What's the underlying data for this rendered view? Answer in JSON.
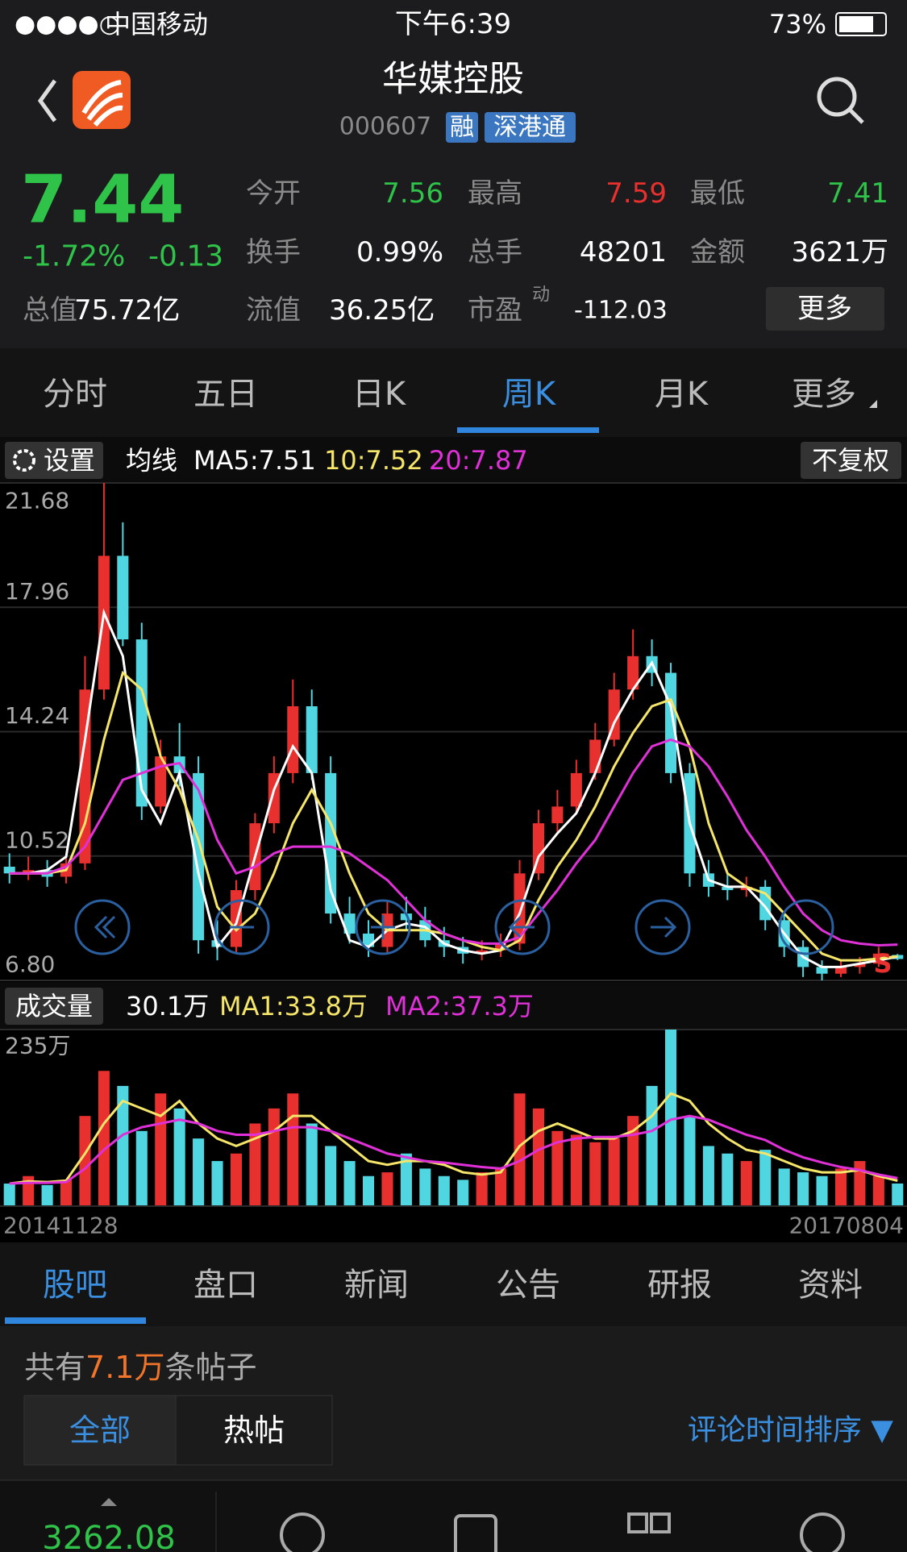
{
  "status_bar": {
    "signal": "●●●●○",
    "carrier": "中国移动",
    "time": "下午6:39",
    "battery": "73%"
  },
  "header": {
    "title": "华媒控股",
    "code": "000607",
    "badges": [
      "融",
      "深港通"
    ]
  },
  "quote": {
    "price": "7.44",
    "change_pct": "-1.72%",
    "change": "-0.13",
    "color": "#2fc34a",
    "fields": [
      {
        "label": "今开",
        "value": "7.56",
        "color": "#2fc34a"
      },
      {
        "label": "最高",
        "value": "7.59",
        "color": "#e8302e"
      },
      {
        "label": "最低",
        "value": "7.41",
        "color": "#2fc34a"
      },
      {
        "label": "换手",
        "value": "0.99%",
        "color": "#ffffff"
      },
      {
        "label": "总手",
        "value": "48201",
        "color": "#ffffff"
      },
      {
        "label": "金额",
        "value": "3621万",
        "color": "#ffffff"
      },
      {
        "label": "总值",
        "value": "75.72亿",
        "color": "#ffffff"
      },
      {
        "label": "流值",
        "value": "36.25亿",
        "color": "#ffffff"
      },
      {
        "label": "市盈",
        "value": "-112.03",
        "color": "#ffffff"
      }
    ],
    "pe_note": "动",
    "more": "更多"
  },
  "chart_tabs": [
    "分时",
    "五日",
    "日K",
    "周K",
    "月K",
    "更多"
  ],
  "active_chart_tab": 3,
  "chart_settings": {
    "settings": "设置",
    "ma_label": "均线",
    "ma5": "MA5:7.51",
    "ma10": "10:7.52",
    "ma20": "20:7.87",
    "adjust": "不复权"
  },
  "chart_data": [
    {
      "type": "candlestick",
      "up_color": "#e8302e",
      "down_color": "#4fd6e0",
      "ylim": [
        6.8,
        21.68
      ],
      "yticks": [
        {
          "value": 6.8,
          "label": "6.80"
        },
        10.52,
        14.24,
        17.96,
        21.68
      ],
      "grid": true,
      "signal_label": "S",
      "open": [
        10.2,
        10.0,
        10.1,
        9.9,
        10.3,
        15.5,
        19.5,
        17.0,
        12.0,
        13.5,
        13.0,
        8.0,
        7.8,
        9.5,
        11.5,
        13.0,
        15.0,
        13.0,
        8.8,
        8.2,
        7.8,
        8.8,
        8.6,
        8.0,
        7.8,
        7.6,
        7.7,
        7.9,
        10.0,
        11.5,
        12.0,
        13.0,
        14.0,
        15.5,
        16.5,
        16.0,
        13.0,
        10.0,
        9.6,
        9.5,
        9.6,
        8.6,
        7.8,
        7.2,
        7.0,
        7.2,
        7.3,
        7.56
      ],
      "close": [
        10.0,
        10.1,
        9.9,
        10.3,
        15.5,
        19.5,
        17.0,
        12.0,
        13.5,
        13.0,
        8.0,
        7.8,
        9.5,
        11.5,
        13.0,
        15.0,
        13.0,
        8.8,
        8.2,
        7.8,
        8.8,
        8.6,
        8.0,
        7.8,
        7.6,
        7.7,
        7.9,
        10.0,
        11.5,
        12.0,
        13.0,
        14.0,
        15.5,
        16.5,
        16.0,
        13.0,
        10.0,
        9.6,
        9.5,
        9.6,
        8.6,
        7.8,
        7.2,
        7.0,
        7.2,
        7.3,
        7.6,
        7.44
      ],
      "high": [
        10.6,
        10.5,
        10.4,
        10.5,
        16.5,
        21.68,
        20.5,
        17.5,
        14.0,
        14.5,
        13.5,
        8.6,
        9.8,
        11.8,
        13.5,
        15.8,
        15.5,
        13.5,
        9.3,
        8.6,
        9.2,
        9.3,
        9.0,
        8.4,
        8.1,
        8.0,
        8.2,
        10.4,
        11.9,
        12.5,
        13.4,
        14.5,
        16.0,
        17.3,
        17.0,
        16.3,
        13.3,
        10.4,
        10.0,
        9.9,
        9.8,
        8.8,
        8.0,
        7.4,
        7.4,
        7.5,
        7.8,
        7.59
      ],
      "low": [
        9.7,
        9.8,
        9.6,
        9.7,
        10.1,
        15.2,
        16.8,
        11.6,
        11.8,
        12.6,
        7.6,
        7.4,
        7.6,
        9.2,
        11.2,
        12.7,
        12.8,
        8.5,
        7.9,
        7.5,
        7.6,
        8.3,
        7.8,
        7.5,
        7.3,
        7.4,
        7.5,
        7.7,
        9.8,
        11.2,
        11.8,
        12.8,
        13.8,
        15.2,
        15.6,
        12.7,
        9.6,
        9.3,
        9.2,
        9.3,
        8.3,
        7.5,
        6.9,
        6.8,
        6.9,
        7.0,
        7.2,
        7.41
      ],
      "series": [
        {
          "name": "MA5",
          "color": "#ffffff",
          "values": [
            10.0,
            10.0,
            10.1,
            10.5,
            14.0,
            17.8,
            16.5,
            12.5,
            11.5,
            13.0,
            10.0,
            7.8,
            8.5,
            10.5,
            12.5,
            13.8,
            13.0,
            9.5,
            8.0,
            7.8,
            8.3,
            8.5,
            8.4,
            7.9,
            7.7,
            7.6,
            7.7,
            8.8,
            10.5,
            11.2,
            11.8,
            13.0,
            14.5,
            15.5,
            16.3,
            15.0,
            11.5,
            9.8,
            9.6,
            9.6,
            9.0,
            8.2,
            7.5,
            7.2,
            7.2,
            7.3,
            7.4,
            7.51
          ]
        },
        {
          "name": "MA10",
          "color": "#f5e66a",
          "values": [
            10.0,
            10.0,
            10.0,
            10.1,
            11.5,
            14.0,
            16.0,
            15.5,
            13.5,
            12.5,
            11.0,
            9.0,
            8.3,
            8.8,
            10.0,
            11.5,
            12.5,
            11.5,
            10.0,
            8.8,
            8.3,
            8.3,
            8.3,
            8.2,
            8.0,
            7.8,
            7.7,
            8.0,
            9.2,
            10.2,
            11.0,
            12.0,
            13.2,
            14.2,
            15.0,
            15.2,
            13.8,
            11.5,
            10.0,
            9.6,
            9.4,
            8.8,
            8.2,
            7.6,
            7.4,
            7.4,
            7.45,
            7.52
          ]
        },
        {
          "name": "MA20",
          "color": "#e030d8",
          "values": [
            10.0,
            10.0,
            10.0,
            10.2,
            10.8,
            11.8,
            12.8,
            13.0,
            13.2,
            13.3,
            12.5,
            11.0,
            10.0,
            10.2,
            10.6,
            10.8,
            10.8,
            10.8,
            10.6,
            10.2,
            9.8,
            9.2,
            8.6,
            8.2,
            8.0,
            7.9,
            7.9,
            8.1,
            8.8,
            9.5,
            10.3,
            11.0,
            12.0,
            13.0,
            13.8,
            14.0,
            13.8,
            13.2,
            12.3,
            11.3,
            10.5,
            9.6,
            8.8,
            8.3,
            8.0,
            7.9,
            7.85,
            7.87
          ]
        }
      ]
    },
    {
      "type": "bar",
      "ylim": [
        0,
        235
      ],
      "yticks": [
        {
          "value": 235,
          "label": "235万"
        }
      ],
      "values": [
        30,
        40,
        28,
        35,
        120,
        180,
        160,
        100,
        150,
        130,
        90,
        60,
        70,
        110,
        130,
        150,
        110,
        80,
        60,
        40,
        45,
        70,
        50,
        40,
        35,
        45,
        50,
        150,
        130,
        100,
        95,
        85,
        90,
        120,
        160,
        235,
        120,
        80,
        70,
        60,
        75,
        50,
        45,
        40,
        50,
        60,
        40,
        30.1
      ],
      "series": [
        {
          "name": "MA1",
          "color": "#f5e66a",
          "values": [
            30,
            33,
            32,
            34,
            70,
            110,
            140,
            130,
            120,
            140,
            110,
            90,
            80,
            90,
            100,
            120,
            120,
            100,
            80,
            60,
            55,
            60,
            60,
            55,
            45,
            42,
            45,
            80,
            100,
            110,
            100,
            90,
            90,
            100,
            120,
            150,
            140,
            110,
            90,
            75,
            70,
            60,
            50,
            45,
            45,
            48,
            40,
            33.8
          ]
        },
        {
          "name": "MA2",
          "color": "#e030d8",
          "values": [
            30,
            31,
            31,
            32,
            50,
            75,
            95,
            105,
            110,
            115,
            110,
            100,
            95,
            95,
            100,
            105,
            105,
            100,
            90,
            80,
            70,
            65,
            60,
            58,
            55,
            52,
            50,
            60,
            75,
            85,
            90,
            92,
            92,
            95,
            100,
            115,
            120,
            115,
            105,
            95,
            88,
            75,
            65,
            58,
            52,
            48,
            42,
            37.3
          ]
        }
      ]
    }
  ],
  "volume_header": {
    "label": "成交量",
    "current": "30.1万",
    "ma1": "MA1:33.8万",
    "ma2": "MA2:37.3万"
  },
  "date_range": [
    "20141128",
    "20170804"
  ],
  "info_tabs": [
    "股吧",
    "盘口",
    "新闻",
    "公告",
    "研报",
    "资料"
  ],
  "active_info_tab": 0,
  "posts": {
    "prefix": "共有",
    "count": "7.1万",
    "suffix": "条帖子",
    "filters": [
      "全部",
      "热帖"
    ],
    "sort": "评论时间排序 ▼"
  },
  "bottom_bar": {
    "index": "3262.08"
  }
}
